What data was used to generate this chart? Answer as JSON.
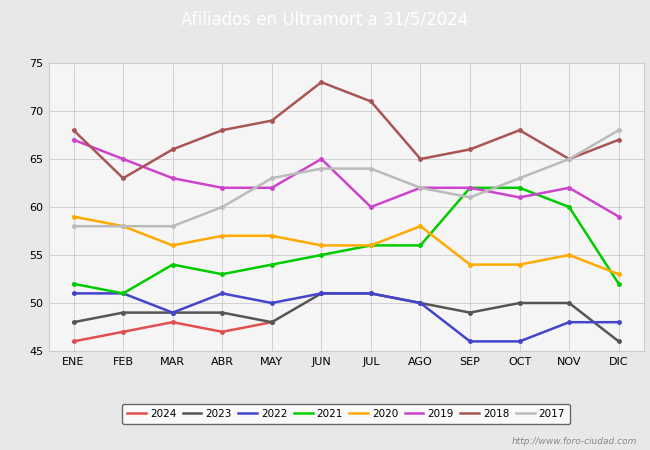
{
  "title": "Afiliados en Ultramort a 31/5/2024",
  "title_bg_color": "#4472c4",
  "title_text_color": "#ffffff",
  "ylim": [
    45,
    75
  ],
  "yticks": [
    45,
    50,
    55,
    60,
    65,
    70,
    75
  ],
  "months": [
    "ENE",
    "FEB",
    "MAR",
    "ABR",
    "MAY",
    "JUN",
    "JUL",
    "AGO",
    "SEP",
    "OCT",
    "NOV",
    "DIC"
  ],
  "series": {
    "2024": {
      "color": "#e05050",
      "data": [
        46,
        47,
        48,
        47,
        48,
        null,
        null,
        null,
        null,
        null,
        null,
        null
      ]
    },
    "2023": {
      "color": "#555555",
      "data": [
        48,
        49,
        49,
        49,
        48,
        51,
        51,
        50,
        49,
        50,
        50,
        46
      ]
    },
    "2022": {
      "color": "#4444cc",
      "data": [
        51,
        51,
        49,
        51,
        50,
        51,
        51,
        50,
        46,
        46,
        48,
        48
      ]
    },
    "2021": {
      "color": "#00cc00",
      "data": [
        52,
        51,
        54,
        53,
        54,
        55,
        56,
        56,
        62,
        62,
        60,
        52
      ]
    },
    "2020": {
      "color": "#ffaa00",
      "data": [
        59,
        58,
        56,
        57,
        57,
        56,
        56,
        58,
        54,
        54,
        55,
        53
      ]
    },
    "2019": {
      "color": "#cc44cc",
      "data": [
        67,
        65,
        63,
        62,
        62,
        65,
        60,
        62,
        62,
        61,
        62,
        59
      ]
    },
    "2018": {
      "color": "#aa5555",
      "data": [
        68,
        63,
        66,
        68,
        69,
        73,
        71,
        65,
        66,
        68,
        65,
        67
      ]
    },
    "2017": {
      "color": "#bbbbbb",
      "data": [
        58,
        58,
        58,
        60,
        63,
        64,
        64,
        62,
        61,
        63,
        65,
        68
      ]
    }
  },
  "legend_order": [
    "2024",
    "2023",
    "2022",
    "2021",
    "2020",
    "2019",
    "2018",
    "2017"
  ],
  "watermark": "http://www.foro-ciudad.com",
  "bg_color": "#e8e8e8",
  "plot_bg_color": "#f5f5f5",
  "grid_color": "#cccccc"
}
